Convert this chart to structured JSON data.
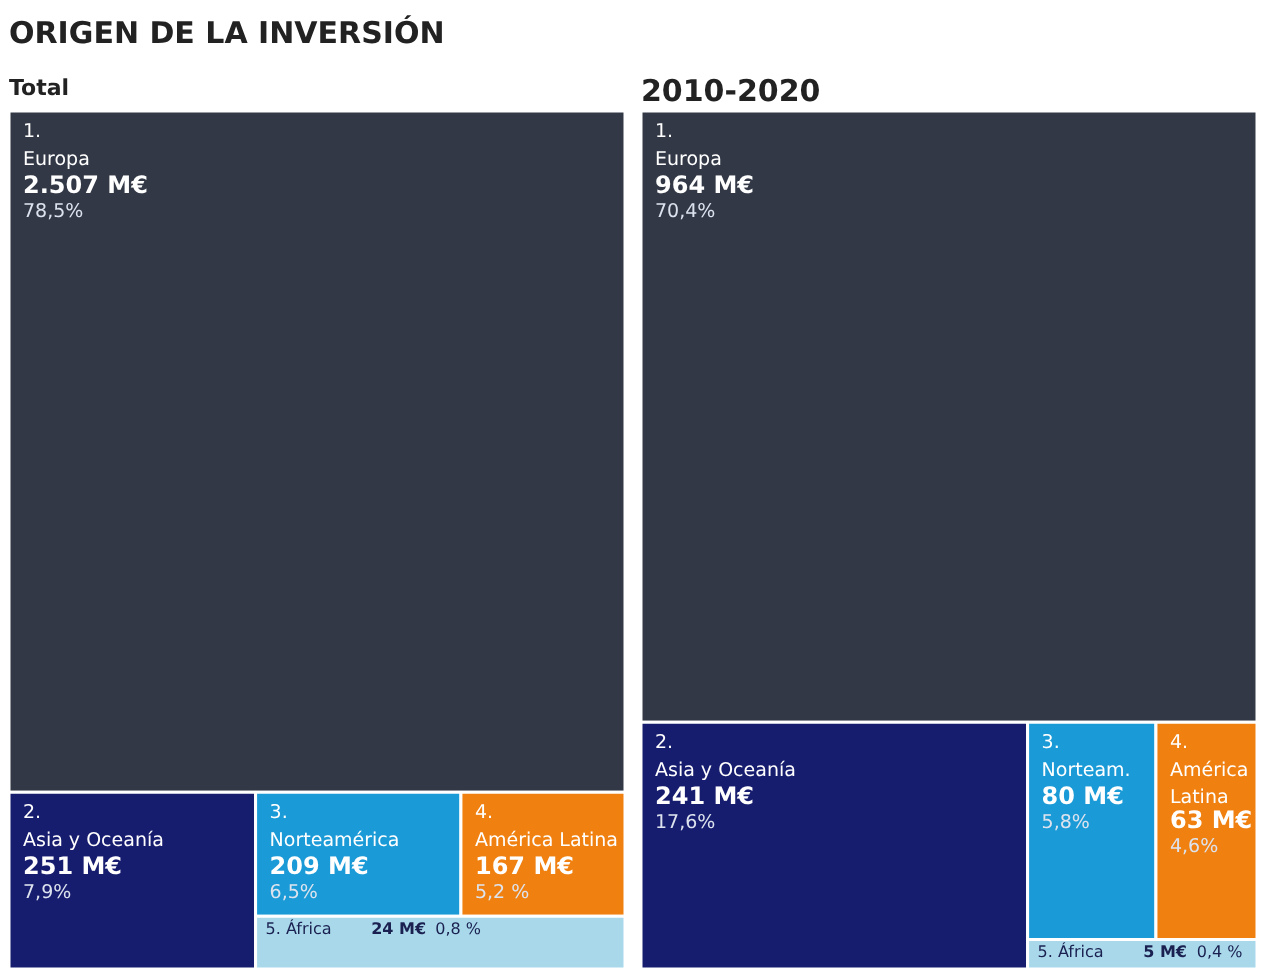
{
  "chart_data": [
    {
      "type": "other",
      "title": "ORIGEN DE LA INVERSIÓN",
      "subtitle": "Total",
      "categories": [
        "1.\nEuropa",
        "2.\nAsia y Oceanía",
        "3.\nNorteamérica",
        "4.\nAmérica Latina",
        "5.\nÁfrica"
      ],
      "values": [
        2507,
        251,
        209,
        167,
        24
      ],
      "value_labels": [
        "2.507 M€",
        "251 M€",
        "209 M€",
        "167 M€",
        "24 M€"
      ],
      "annotations": [
        {
          "text": "78,5%",
          "x": "1.\nEuropa"
        },
        {
          "text": "7,9%",
          "x": "2.\nAsia y Oceanía"
        },
        {
          "text": "6,5%",
          "x": "3.\nNorteamérica"
        },
        {
          "text": "5,2 %",
          "x": "4.\nAmérica Latina"
        },
        {
          "text": "0,8 %",
          "x": "5.\nÁfrica"
        }
      ],
      "colors": [
        "#323846",
        "#161c6e",
        "#1a9ad6",
        "#f08010",
        "#a8d8ea"
      ]
    },
    {
      "type": "other",
      "title": "2010-2020",
      "categories": [
        "1.\nEuropa",
        "2.\nAsia y Oceanía",
        "3.\nNorteam.",
        "4.\nAmérica\nLatina",
        "5.\nÁfrica"
      ],
      "values": [
        964,
        241,
        80,
        63,
        5
      ],
      "value_labels": [
        "964 M€",
        "241 M€",
        "80 M€",
        "63 M€",
        "5 M€"
      ],
      "annotations": [
        {
          "text": "70,4%",
          "x": "1.\nEuropa"
        },
        {
          "text": "17,6%",
          "x": "2.\nAsia y Oceanía"
        },
        {
          "text": "5,8%",
          "x": "3.\nNorteam."
        },
        {
          "text": "4,6%",
          "x": "4.\nAmérica\nLatina"
        },
        {
          "text": "0,4 %",
          "x": "5.\nÁfrica"
        }
      ],
      "colors": [
        "#323846",
        "#161c6e",
        "#1a9ad6",
        "#f08010",
        "#a8d8ea"
      ]
    }
  ]
}
